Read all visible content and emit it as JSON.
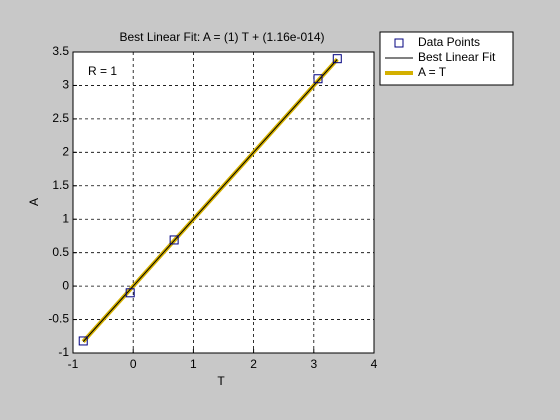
{
  "chart_data": {
    "type": "scatter",
    "title": "Best Linear Fit:  A = (1) T + (1.16e-014)",
    "annotation": "R = 1",
    "x_label": "T",
    "y_label": "A",
    "xlim": [
      -1,
      4
    ],
    "xticks": [
      -1,
      0,
      1,
      2,
      3,
      4
    ],
    "ylim": [
      -1,
      3.5
    ],
    "yticks": [
      -1,
      -0.5,
      0,
      0.5,
      1,
      1.5,
      2,
      2.5,
      3,
      3.5
    ],
    "grid": true,
    "legend": "outside-top-right",
    "series": [
      {
        "name": "Data Points",
        "color": "#00007f",
        "style": "marker",
        "x": [
          -0.83,
          -0.05,
          0.68,
          3.07,
          3.39
        ],
        "values": [
          -0.82,
          -0.1,
          0.69,
          3.1,
          3.4
        ]
      },
      {
        "name": "Best Linear Fit",
        "color": "#000000",
        "style": "thin-line",
        "x": [
          -0.83,
          3.39
        ],
        "values": [
          -0.83,
          3.39
        ]
      },
      {
        "name": "A = T",
        "color": "#d4b000",
        "style": "thick-line",
        "x": [
          -0.83,
          3.39
        ],
        "values": [
          -0.83,
          3.39
        ]
      }
    ]
  }
}
